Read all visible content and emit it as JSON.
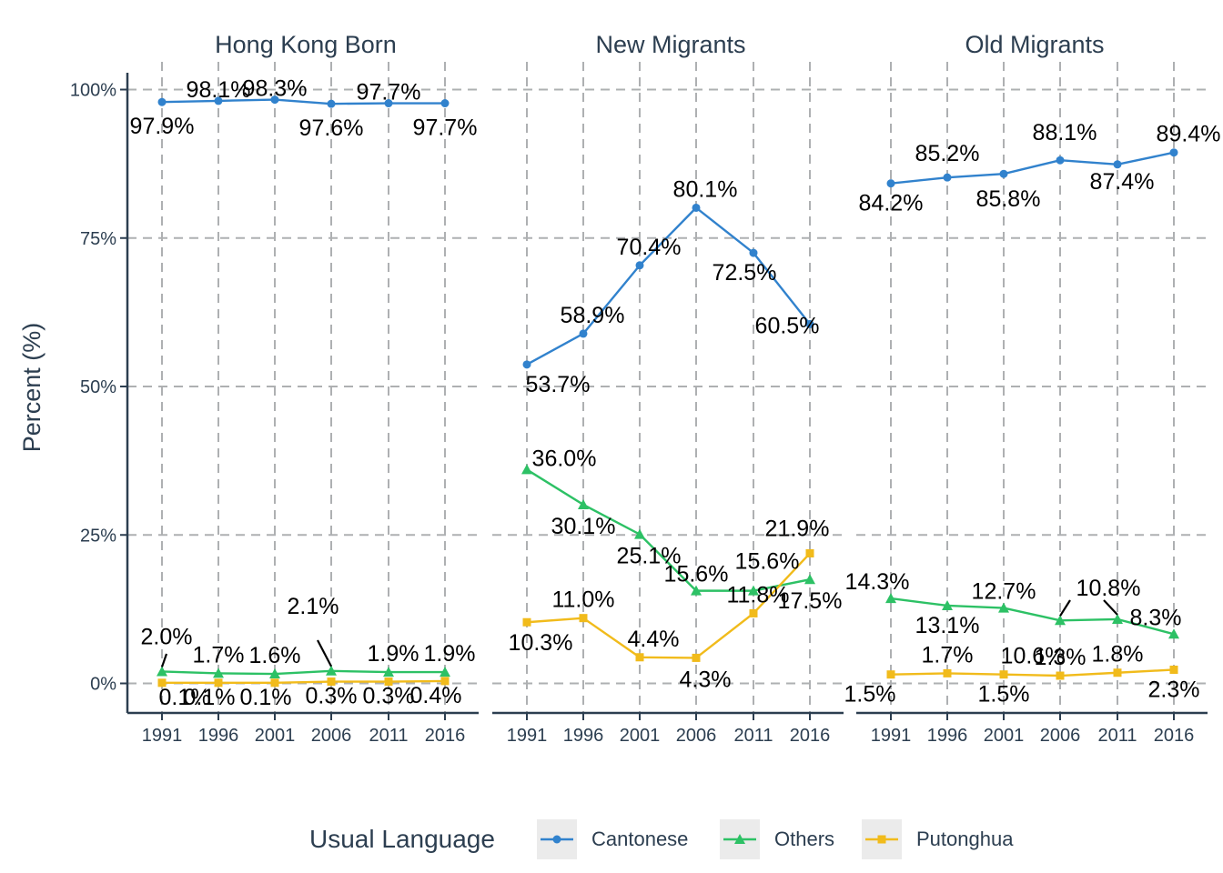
{
  "chart_data": {
    "type": "line",
    "x": [
      "1991",
      "1996",
      "2001",
      "2006",
      "2011",
      "2016"
    ],
    "ylabel": "Percent (%)",
    "xlabel": "",
    "ylim": [
      0,
      100
    ],
    "y_ticks": [
      "0%",
      "25%",
      "50%",
      "75%",
      "100%"
    ],
    "y_tick_values": [
      0,
      25,
      50,
      75,
      100
    ],
    "grid": true,
    "legend": {
      "title": "Usual Language",
      "position": "bottom"
    },
    "series_styles": {
      "Cantonese": {
        "color": "#3182cd",
        "marker": "circle"
      },
      "Others": {
        "color": "#2dc165",
        "marker": "triangle"
      },
      "Putonghua": {
        "color": "#f1bb1b",
        "marker": "square"
      }
    },
    "series_order": [
      "Cantonese",
      "Others",
      "Putonghua"
    ],
    "panels": [
      {
        "title": "Hong Kong Born",
        "series": [
          {
            "name": "Cantonese",
            "values": [
              97.9,
              98.1,
              98.3,
              97.6,
              97.7,
              97.7
            ],
            "labels": [
              "97.9%",
              "98.1%",
              "98.3%",
              "97.6%",
              "97.7%",
              "97.7%"
            ]
          },
          {
            "name": "Others",
            "values": [
              2.0,
              1.7,
              1.6,
              2.1,
              1.9,
              1.9
            ],
            "labels": [
              "2.0%",
              "1.7%",
              "1.6%",
              "2.1%",
              "1.9%",
              "1.9%"
            ]
          },
          {
            "name": "Putonghua",
            "values": [
              0.1,
              0.1,
              0.1,
              0.3,
              0.3,
              0.4
            ],
            "labels": [
              "0.1%",
              "0.1%",
              "0.1%",
              "0.3%",
              "0.3%",
              "0.4%"
            ]
          }
        ]
      },
      {
        "title": "New Migrants",
        "series": [
          {
            "name": "Cantonese",
            "values": [
              53.7,
              58.9,
              70.4,
              80.1,
              72.5,
              60.5
            ],
            "labels": [
              "53.7%",
              "58.9%",
              "70.4%",
              "80.1%",
              "72.5%",
              "60.5%"
            ]
          },
          {
            "name": "Others",
            "values": [
              36.0,
              30.1,
              25.1,
              15.6,
              15.6,
              17.5
            ],
            "labels": [
              "36.0%",
              "30.1%",
              "25.1%",
              "15.6%",
              "15.6%",
              "17.5%"
            ]
          },
          {
            "name": "Putonghua",
            "values": [
              10.3,
              11.0,
              4.4,
              4.3,
              11.8,
              21.9
            ],
            "labels": [
              "10.3%",
              "11.0%",
              "4.4%",
              "4.3%",
              "11.8%",
              "21.9%"
            ]
          }
        ]
      },
      {
        "title": "Old Migrants",
        "series": [
          {
            "name": "Cantonese",
            "values": [
              84.2,
              85.2,
              85.8,
              88.1,
              87.4,
              89.4
            ],
            "labels": [
              "84.2%",
              "85.2%",
              "85.8%",
              "88.1%",
              "87.4%",
              "89.4%"
            ]
          },
          {
            "name": "Others",
            "values": [
              14.3,
              13.1,
              12.7,
              10.6,
              10.8,
              8.3
            ],
            "labels": [
              "14.3%",
              "13.1%",
              "12.7%",
              "10.6%",
              "10.8%",
              "8.3%"
            ]
          },
          {
            "name": "Putonghua",
            "values": [
              1.5,
              1.7,
              1.5,
              1.3,
              1.8,
              2.3
            ],
            "labels": [
              "1.5%",
              "1.7%",
              "1.5%",
              "1.3%",
              "1.8%",
              "2.3%"
            ]
          }
        ]
      }
    ]
  }
}
